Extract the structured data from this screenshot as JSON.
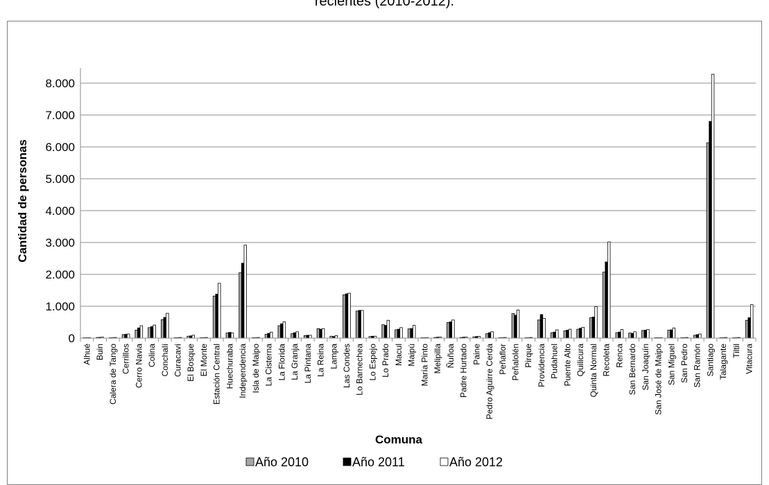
{
  "chart_data": {
    "type": "bar",
    "title": "recientes (2010-2012).",
    "xlabel": "Comuna",
    "ylabel": "Cantidad de personas",
    "ylim": [
      0,
      8000
    ],
    "yticks": [
      "0",
      "1.000",
      "2.000",
      "3.000",
      "4.000",
      "5.000",
      "6.000",
      "7.000",
      "8.000"
    ],
    "grid": true,
    "legend_position": "bottom",
    "categories": [
      "Alhué",
      "Buin",
      "Calera de Tango",
      "Cerrillos",
      "Cerro Navia",
      "Colina",
      "Conchalí",
      "Curacaví",
      "El Bosque",
      "El Monte",
      "Estación Central",
      "Huechuraba",
      "Independencia",
      "Isla de Maipo",
      "La Cisterna",
      "La Florida",
      "La Granja",
      "La Pintana",
      "La Reina",
      "Lampa",
      "Las Condes",
      "Lo Barnechea",
      "Lo Espejo",
      "Lo Prado",
      "Macul",
      "Maipú",
      "María Pinto",
      "Melipilla",
      "Ñuñoa",
      "Padre Hurtado",
      "Paine",
      "Pedro Aguirre Cerda",
      "Peñaflor",
      "Peñalolén",
      "Pirque",
      "Providencia",
      "Pudahuel",
      "Puente Alto",
      "Quilicura",
      "Quinta Normal",
      "Recoleta",
      "Renca",
      "San Bernardo",
      "San Joaquín",
      "San José de Maipo",
      "San Miguel",
      "San Pedro",
      "San Ramón",
      "Santiago",
      "Talagante",
      "Tiltil",
      "Vitacura"
    ],
    "series": [
      {
        "name": "Año 2010",
        "color": "#a6a6a6",
        "values": [
          5,
          20,
          10,
          110,
          250,
          330,
          580,
          10,
          60,
          10,
          1320,
          160,
          2050,
          10,
          120,
          390,
          140,
          80,
          300,
          60,
          1360,
          850,
          50,
          420,
          260,
          290,
          10,
          20,
          490,
          20,
          40,
          140,
          10,
          770,
          10,
          570,
          170,
          230,
          280,
          640,
          2070,
          170,
          160,
          240,
          10,
          250,
          10,
          90,
          6130,
          10,
          10,
          560
        ]
      },
      {
        "name": "Año 2011",
        "color": "#000000",
        "values": [
          5,
          25,
          15,
          120,
          320,
          360,
          650,
          15,
          70,
          15,
          1380,
          180,
          2350,
          15,
          150,
          450,
          170,
          90,
          280,
          50,
          1390,
          870,
          60,
          400,
          280,
          300,
          10,
          30,
          510,
          30,
          50,
          170,
          15,
          720,
          15,
          740,
          190,
          250,
          310,
          660,
          2390,
          190,
          150,
          250,
          10,
          260,
          15,
          110,
          6800,
          15,
          15,
          640
        ]
      },
      {
        "name": "Año 2012",
        "color": "#ffffff",
        "values": [
          5,
          30,
          20,
          130,
          390,
          410,
          780,
          20,
          90,
          20,
          1720,
          160,
          2920,
          20,
          190,
          510,
          200,
          90,
          300,
          80,
          1410,
          870,
          60,
          560,
          330,
          400,
          15,
          35,
          570,
          35,
          55,
          200,
          20,
          880,
          20,
          620,
          260,
          280,
          340,
          990,
          3020,
          270,
          200,
          270,
          15,
          320,
          20,
          130,
          8280,
          20,
          20,
          1050
        ]
      }
    ]
  }
}
